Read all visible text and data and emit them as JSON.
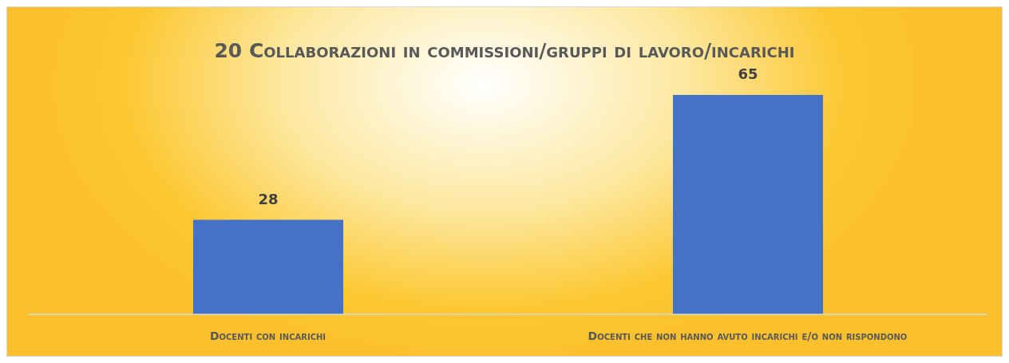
{
  "chart_data": {
    "type": "bar",
    "title": "20 Collaborazioni in commissioni/gruppi di lavoro/incarichi",
    "categories": [
      "Docenti con incarichi",
      "Docenti che non hanno avuto incarichi e/o non rispondono"
    ],
    "values": [
      28,
      65
    ],
    "color": "#4472c4",
    "data_labels": true,
    "grid": false,
    "legend": false
  }
}
